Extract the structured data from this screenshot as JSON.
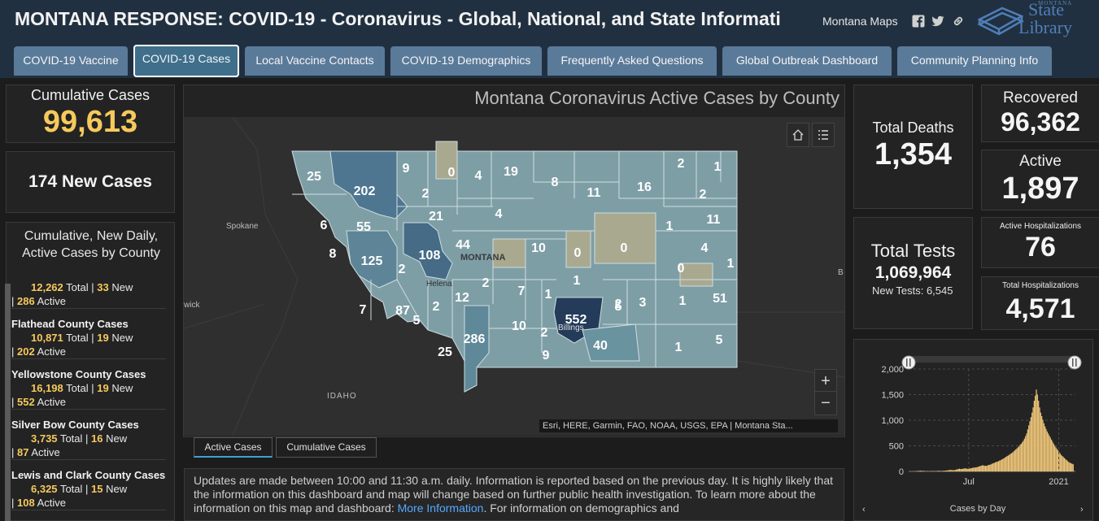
{
  "header": {
    "title": "MONTANA RESPONSE: COVID-19 - Coronavirus - Global, National, and State Informati",
    "maps_link": "Montana Maps",
    "logo_small": "MONTANA",
    "logo_line1": "State",
    "logo_line2": "Library",
    "icons": [
      "facebook-icon",
      "twitter-icon",
      "link-icon"
    ]
  },
  "tabs": [
    {
      "label": "COVID-19 Vaccine",
      "active": false
    },
    {
      "label": "COVID-19 Cases",
      "active": true
    },
    {
      "label": "Local Vaccine Contacts",
      "active": false
    },
    {
      "label": "COVID-19 Demographics",
      "active": false
    },
    {
      "label": "Frequently Asked Questions",
      "active": false
    },
    {
      "label": "Global Outbreak Dashboard",
      "active": false
    },
    {
      "label": "Community Planning Info",
      "active": false
    }
  ],
  "left": {
    "cumulative_label": "Cumulative Cases",
    "cumulative_value": "99,613",
    "new_cases": "174 New Cases",
    "list_title": "Cumulative, New Daily, Active Cases by County",
    "list_items": [
      {
        "name": "",
        "total": "12,262",
        "total_label": "Total",
        "new": "33",
        "new_label": "New",
        "active": "286",
        "active_label": "Active"
      },
      {
        "name": "Flathead County Cases",
        "total": "10,871",
        "total_label": "Total",
        "new": "19",
        "new_label": "New",
        "active": "202",
        "active_label": "Active"
      },
      {
        "name": "Yellowstone County Cases",
        "total": "16,198",
        "total_label": "Total",
        "new": "19",
        "new_label": "New",
        "active": "552",
        "active_label": "Active"
      },
      {
        "name": "Silver Bow County Cases",
        "total": "3,735",
        "total_label": "Total",
        "new": "16",
        "new_label": "New",
        "active": "87",
        "active_label": "Active"
      },
      {
        "name": "Lewis and Clark County Cases",
        "total": "6,325",
        "total_label": "Total",
        "new": "15",
        "new_label": "New",
        "active": "108",
        "active_label": "Active"
      }
    ]
  },
  "map": {
    "title": "Montana Coronavirus Active Cases by County",
    "state_label": "MONTANA",
    "city_labels": {
      "helena": "Helena",
      "billings": "Billings",
      "spokane": "Spokane",
      "idaho": "IDAHO",
      "wick": "wick",
      "b": "B"
    },
    "county_values": [
      "25",
      "202",
      "9",
      "0",
      "4",
      "19",
      "8",
      "11",
      "16",
      "2",
      "1",
      "2",
      "21",
      "2",
      "4",
      "6",
      "55",
      "44",
      "10",
      "0",
      "0",
      "1",
      "11",
      "4",
      "8",
      "125",
      "2",
      "108",
      "0",
      "1",
      "2",
      "12",
      "1",
      "7",
      "1",
      "2",
      "3",
      "1",
      "51",
      "7",
      "87",
      "5",
      "2",
      "5",
      "552",
      "10",
      "2",
      "286",
      "25",
      "9",
      "40",
      "1",
      "5"
    ],
    "zoom_in": "+",
    "zoom_out": "−",
    "attribution": "Esri, HERE, Garmin, FAO, NOAA, USGS, EPA | Montana Sta...",
    "tabs": [
      "Active Cases",
      "Cumulative Cases"
    ]
  },
  "info": {
    "text1": "Updates are made between 10:00 and 11:30 a.m. daily. Information is reported based on the previous day. It is highly likely that the information on this dashboard and map will change based on further public health investigation. To learn more about the information on this map and dashboard: ",
    "link1": "More Information",
    "text2": ". For information on demographics and"
  },
  "right": {
    "deaths_label": "Total Deaths",
    "deaths_value": "1,354",
    "tests_label": "Total Tests",
    "tests_value": "1,069,964",
    "new_tests": "New Tests: 6,545",
    "recovered_label": "Recovered",
    "recovered_value": "96,362",
    "active_label": "Active",
    "active_value": "1,897",
    "active_hosp_label": "Active Hospitalizations",
    "active_hosp_value": "76",
    "total_hosp_label": "Total Hospitalizations",
    "total_hosp_value": "4,571"
  },
  "colors": {
    "header_bg": "#213040",
    "tab": "#5a7a99",
    "tab_active": "#3f6f8b",
    "accent_yellow": "#f6c95c",
    "bar": "#f0c77a"
  },
  "chart_data": {
    "type": "bar",
    "xlabel": "Cases by Day",
    "ylabel": "",
    "ylim": [
      0,
      2000
    ],
    "yticks": [
      0,
      500,
      1000,
      1500,
      2000
    ],
    "ytick_labels": [
      "0",
      "500",
      "1,000",
      "1,500",
      "2,000"
    ],
    "xtick_labels": [
      "Jul",
      "2021"
    ],
    "grid": true,
    "approx_x_range": [
      "Mar 2020",
      "Feb 2021"
    ],
    "values": [
      0,
      0,
      0,
      2,
      4,
      6,
      8,
      10,
      12,
      14,
      12,
      10,
      10,
      8,
      6,
      6,
      6,
      4,
      6,
      6,
      8,
      8,
      6,
      6,
      8,
      10,
      12,
      10,
      8,
      10,
      12,
      14,
      16,
      18,
      20,
      24,
      28,
      30,
      26,
      24,
      24,
      28,
      36,
      40,
      50,
      52,
      48,
      46,
      52,
      56,
      60,
      56,
      52,
      50,
      56,
      60,
      64,
      70,
      74,
      78,
      76,
      82,
      90,
      96,
      104,
      110,
      118,
      120,
      112,
      106,
      110,
      118,
      126,
      130,
      138,
      150,
      158,
      166,
      176,
      186,
      190,
      200,
      212,
      220,
      232,
      244,
      256,
      270,
      286,
      300,
      310,
      326,
      342,
      356,
      370,
      390,
      410,
      430,
      450,
      470,
      490,
      520,
      540,
      570,
      600,
      640,
      690,
      740,
      820,
      900,
      980,
      1060,
      1150,
      1250,
      1380,
      1480,
      1600,
      1500,
      1380,
      1250,
      1150,
      1080,
      1010,
      940,
      880,
      830,
      780,
      740,
      700,
      660,
      620,
      580,
      540,
      500,
      470,
      440,
      410,
      380,
      350,
      320,
      300,
      280,
      260,
      240,
      220,
      200,
      180,
      170,
      160,
      150,
      140
    ]
  }
}
